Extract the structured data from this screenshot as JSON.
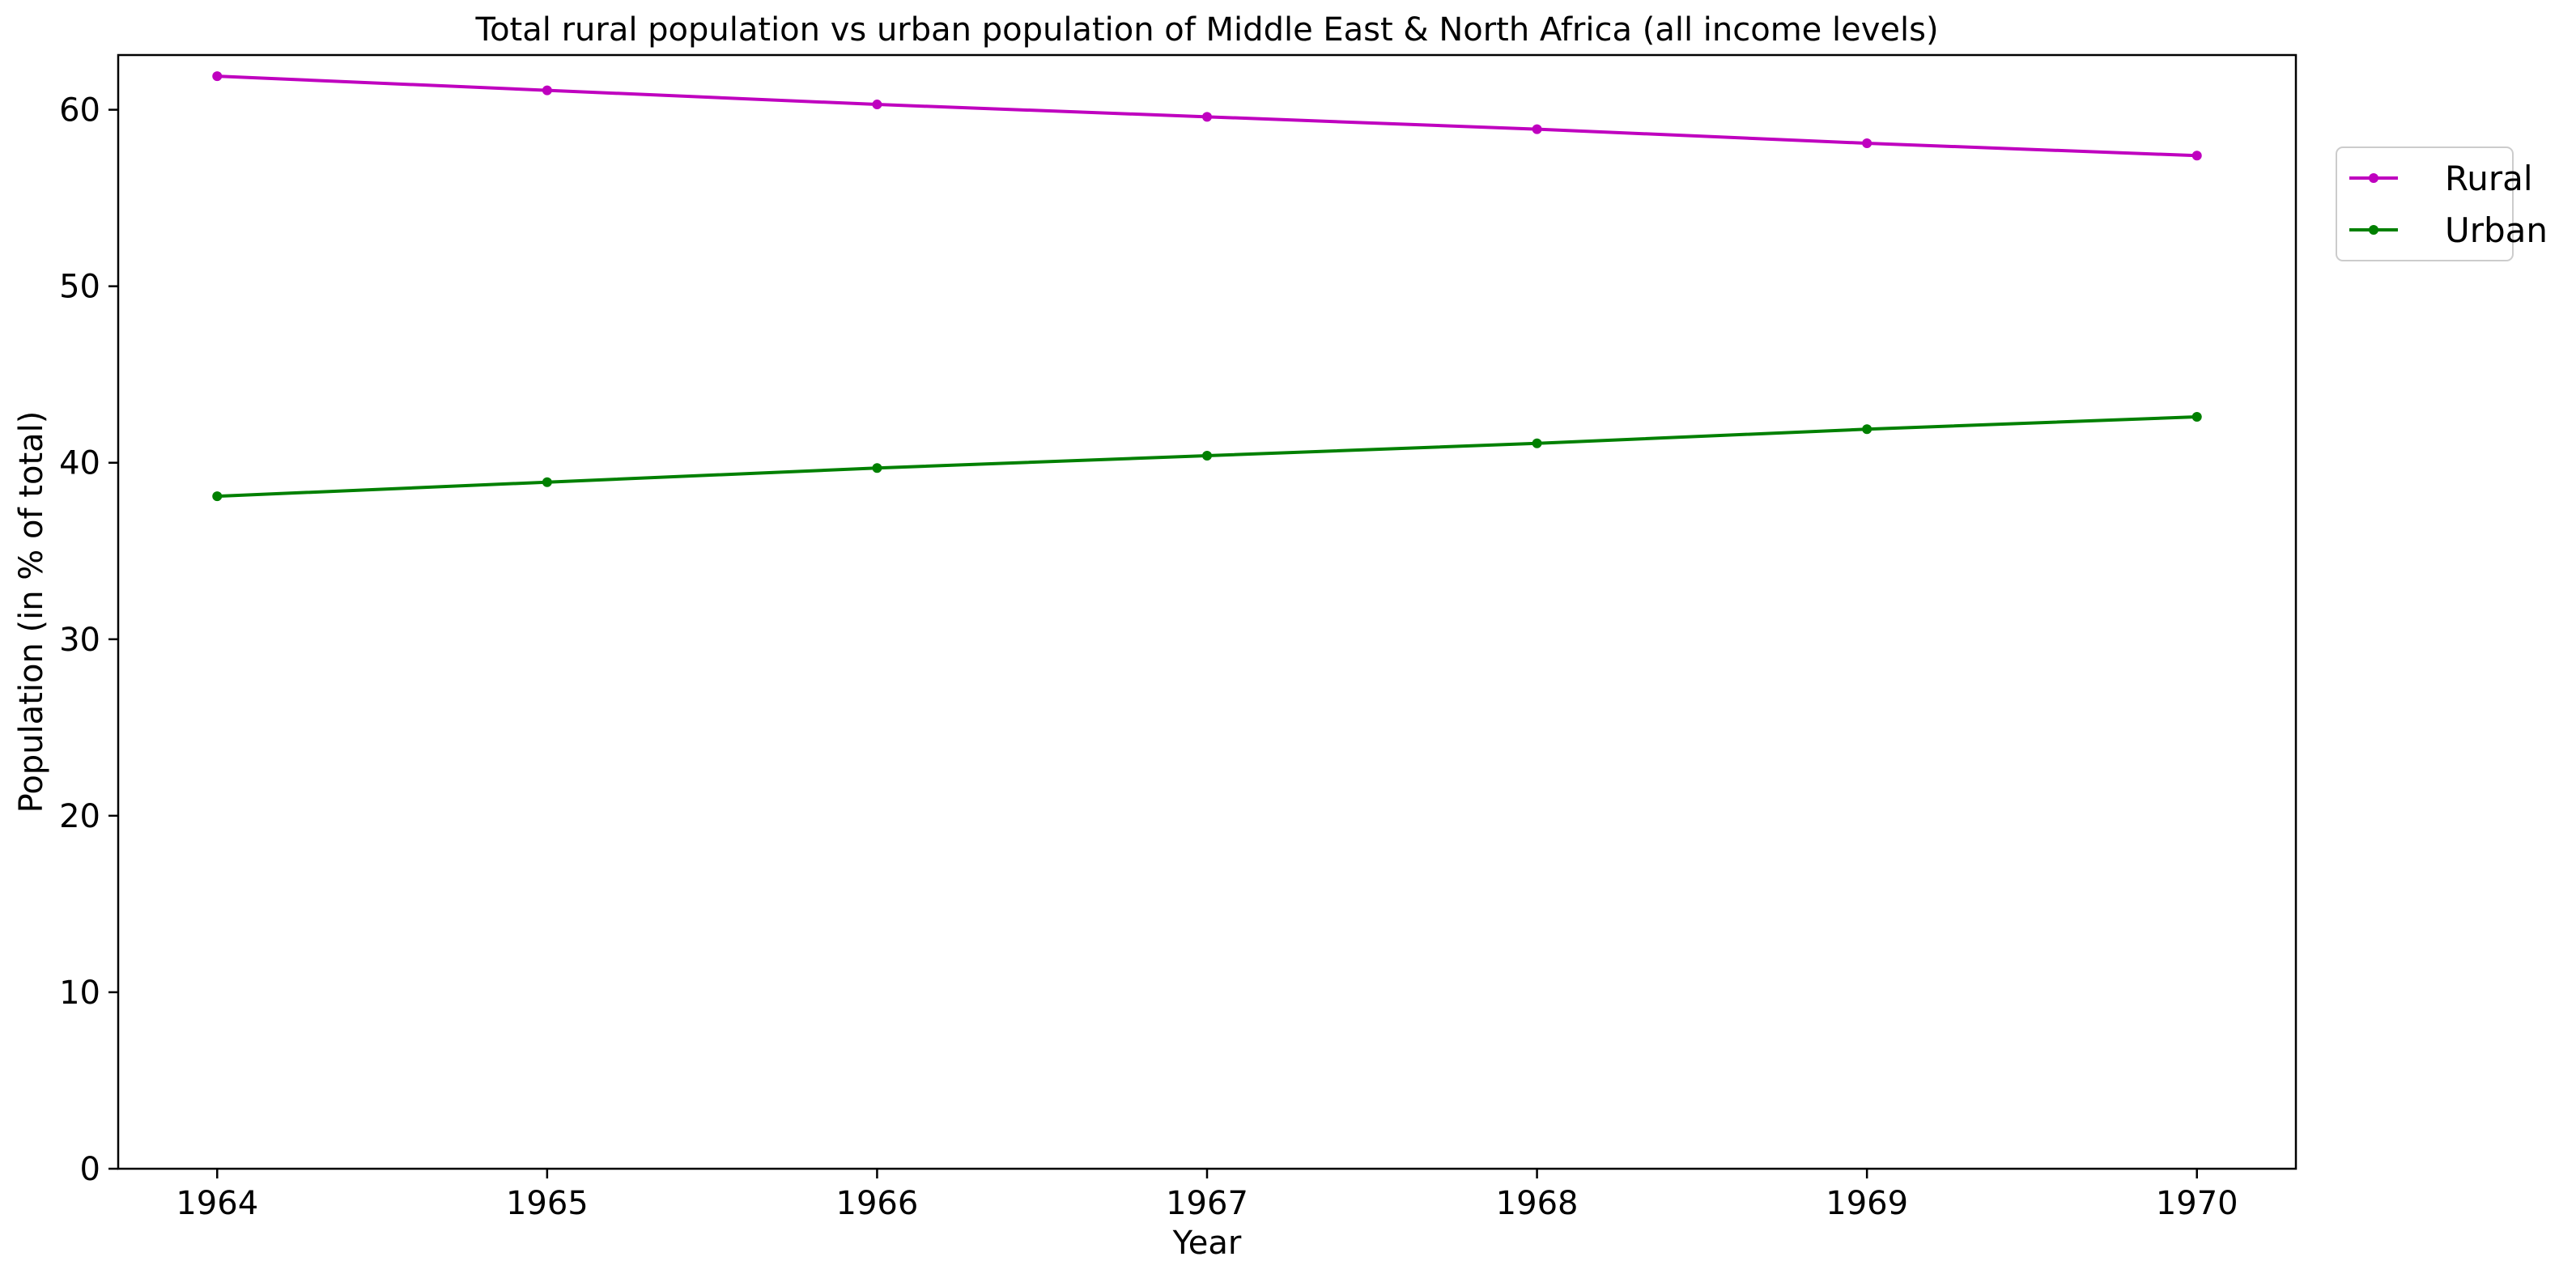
{
  "chart_data": {
    "type": "line",
    "title": "Total rural population vs urban population of Middle East & North Africa (all income levels)",
    "xlabel": "Year",
    "ylabel": "Population (in % of total)",
    "x": [
      1964,
      1965,
      1966,
      1967,
      1968,
      1969,
      1970
    ],
    "xlim": [
      1963.7,
      1970.3
    ],
    "ylim": [
      0,
      63.1
    ],
    "yticks": [
      0,
      10,
      20,
      30,
      40,
      50,
      60
    ],
    "grid": false,
    "legend_position": "outside-top-right",
    "series": [
      {
        "name": "Rural",
        "color": "#bf00bf",
        "values": [
          61.9,
          61.1,
          60.3,
          59.6,
          58.9,
          58.1,
          57.4
        ]
      },
      {
        "name": "Urban",
        "color": "#008000",
        "values": [
          38.1,
          38.9,
          39.7,
          40.4,
          41.1,
          41.9,
          42.6
        ]
      }
    ]
  }
}
